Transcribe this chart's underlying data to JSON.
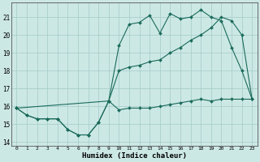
{
  "xlabel": "Humidex (Indice chaleur)",
  "background_color": "#cce8e5",
  "grid_color": "#aacfcc",
  "line_color": "#1a6b5a",
  "xlim": [
    -0.5,
    23.5
  ],
  "ylim": [
    13.8,
    21.8
  ],
  "yticks": [
    14,
    15,
    16,
    17,
    18,
    19,
    20,
    21
  ],
  "xticks": [
    0,
    1,
    2,
    3,
    4,
    5,
    6,
    7,
    8,
    9,
    10,
    11,
    12,
    13,
    14,
    15,
    16,
    17,
    18,
    19,
    20,
    21,
    22,
    23
  ],
  "line1_x": [
    0,
    1,
    2,
    3,
    4,
    5,
    6,
    7,
    8,
    9,
    10,
    11,
    12,
    13,
    14,
    15,
    16,
    17,
    18,
    19,
    20,
    21,
    22,
    23
  ],
  "line1_y": [
    15.9,
    15.5,
    15.3,
    15.3,
    15.3,
    14.7,
    14.4,
    14.4,
    15.1,
    16.3,
    15.8,
    15.9,
    15.9,
    15.9,
    16.0,
    16.1,
    16.2,
    16.3,
    16.4,
    16.3,
    16.4,
    16.4,
    16.4,
    16.4
  ],
  "line2_x": [
    0,
    1,
    2,
    3,
    4,
    5,
    6,
    7,
    8,
    9,
    10,
    11,
    12,
    13,
    14,
    15,
    16,
    17,
    18,
    19,
    20,
    21,
    22,
    23
  ],
  "line2_y": [
    15.9,
    15.5,
    15.3,
    15.3,
    15.3,
    14.7,
    14.4,
    14.4,
    15.1,
    16.3,
    19.4,
    20.6,
    20.7,
    21.1,
    20.1,
    21.2,
    20.9,
    21.0,
    21.4,
    21.0,
    20.8,
    19.3,
    18.0,
    16.4
  ],
  "line3_x": [
    0,
    9,
    10,
    11,
    12,
    13,
    14,
    15,
    16,
    17,
    18,
    19,
    20,
    21,
    22,
    23
  ],
  "line3_y": [
    15.9,
    16.3,
    18.0,
    18.2,
    18.3,
    18.5,
    18.6,
    19.0,
    19.3,
    19.7,
    20.0,
    20.4,
    21.0,
    20.8,
    20.0,
    16.4
  ]
}
